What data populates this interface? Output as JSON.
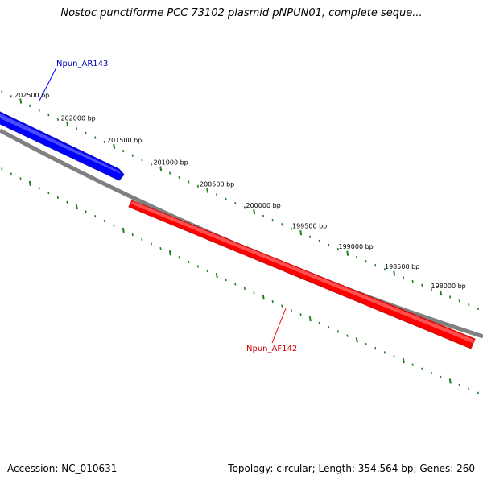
{
  "title": "Nostoc punctiforme PCC 73102 plasmid pNPUN01, complete seque...",
  "footer": {
    "accession": "Accession: NC_010631",
    "summary": "Topology: circular; Length: 354,564 bp; Genes: 260"
  },
  "scale_labels": [
    "202500 bp",
    "202000 bp",
    "201500 bp",
    "201000 bp",
    "200500 bp",
    "200000 bp",
    "199500 bp",
    "199000 bp",
    "198500 bp",
    "198000 bp"
  ],
  "features": [
    {
      "label": "Npun_AR143",
      "strand": "forward",
      "color": "#0000ff"
    },
    {
      "label": "Npun_AF142",
      "strand": "reverse",
      "color": "#ff0000"
    }
  ],
  "colors": {
    "backbone": "#808080",
    "tick": "#1f7f1f",
    "forward_gene": "#0000ff",
    "reverse_gene": "#ff0000"
  }
}
